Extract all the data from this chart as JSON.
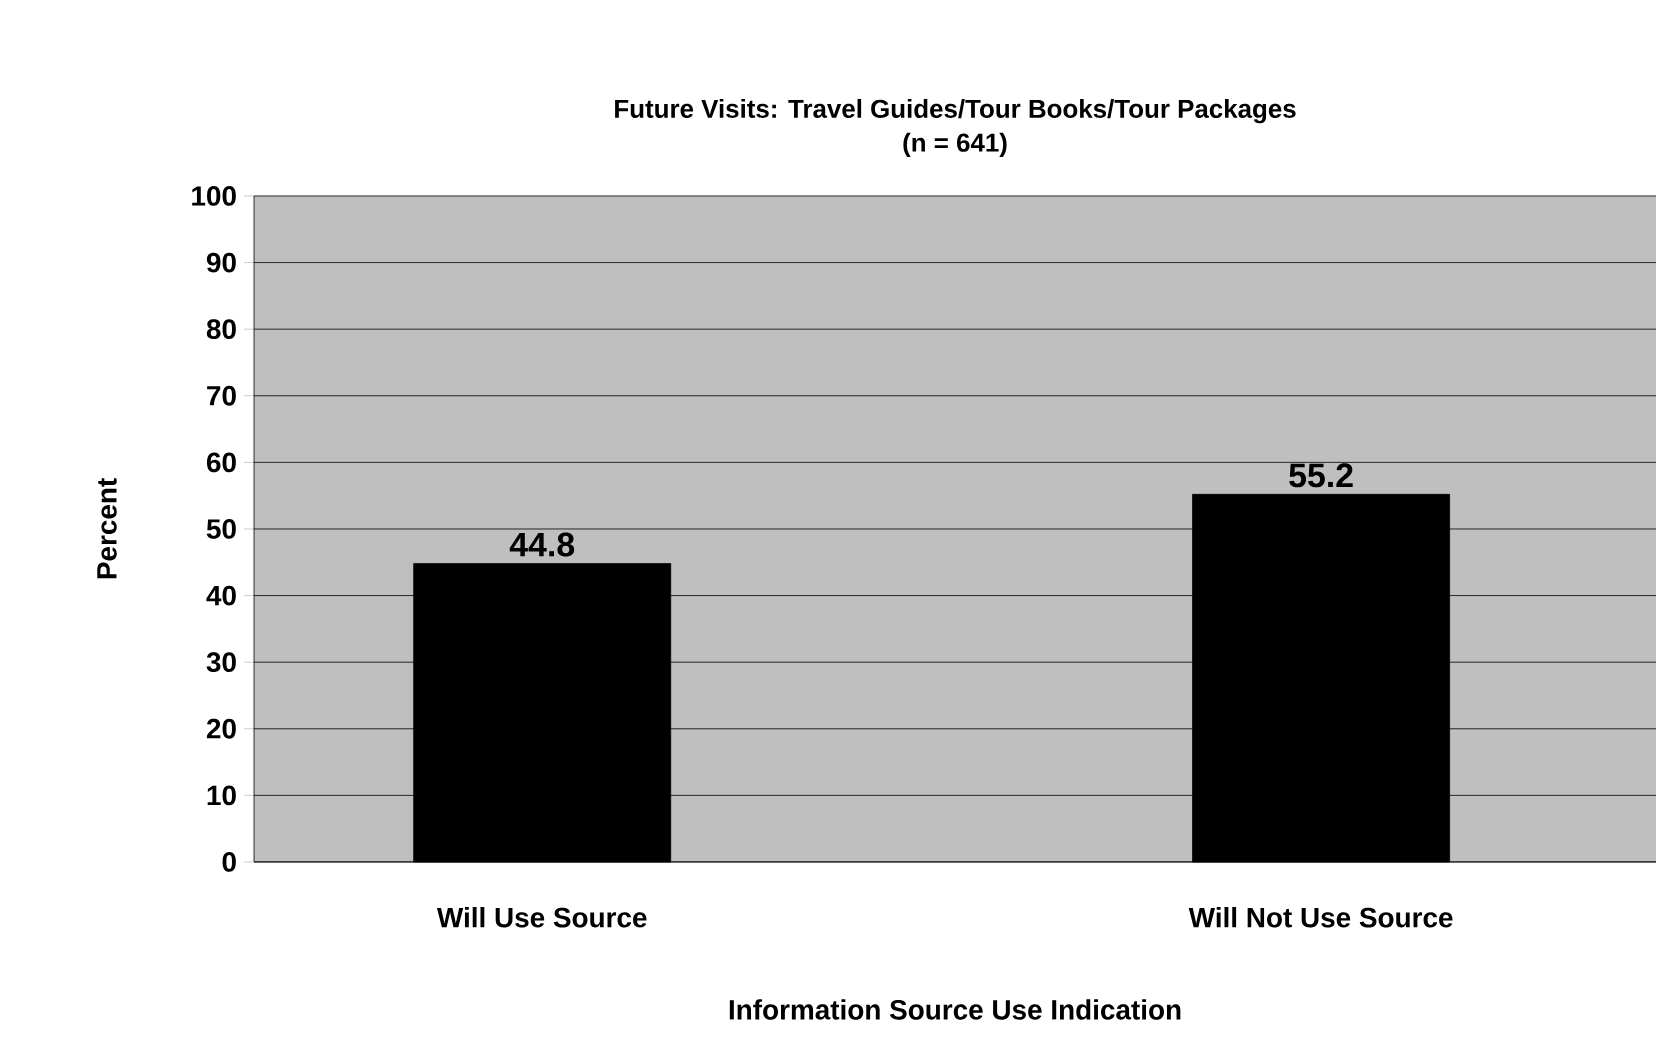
{
  "chart_data": {
    "type": "bar",
    "title": "Future Visits: Travel Guides/Tour Books/Tour Packages",
    "subtitle": "(n = 641)",
    "xlabel": "Information Source Use Indication",
    "ylabel": "Percent",
    "categories": [
      "Will Use Source",
      "Will Not Use Source"
    ],
    "values": [
      44.8,
      55.2
    ],
    "color": "#000000",
    "ylim": [
      0,
      100
    ],
    "yticks": [
      0,
      10,
      20,
      30,
      40,
      50,
      60,
      70,
      80,
      90,
      100
    ],
    "grid": "y",
    "data_labels": true
  }
}
